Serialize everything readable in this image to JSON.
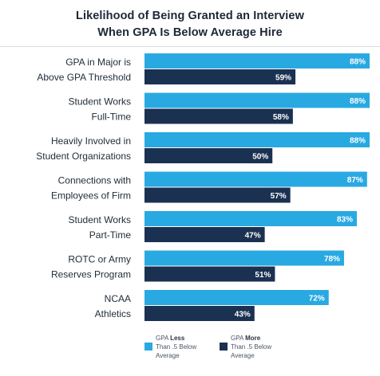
{
  "chart_data": {
    "type": "bar",
    "orientation": "horizontal",
    "title": [
      "Likelihood of Being Granted an Interview",
      "When GPA Is Below Average Hire"
    ],
    "categories": [
      [
        "GPA in Major is",
        "Above GPA Threshold"
      ],
      [
        "Student Works",
        "Full-Time"
      ],
      [
        "Heavily Involved in",
        "Student Organizations"
      ],
      [
        "Connections with",
        "Employees of Firm"
      ],
      [
        "Student Works",
        "Part-Time"
      ],
      [
        "ROTC or Army",
        "Reserves Program"
      ],
      [
        "NCAA",
        "Athletics"
      ]
    ],
    "series": [
      {
        "legend": [
          "GPA ",
          "Less",
          "Than .5 Below",
          "Average"
        ],
        "color": "#29a9e1",
        "values": [
          88,
          88,
          88,
          87,
          83,
          78,
          72
        ],
        "value_labels": [
          "88%",
          "88%",
          "88%",
          "87%",
          "83%",
          "78%",
          "72%"
        ]
      },
      {
        "legend": [
          "GPA ",
          "More",
          "Than .5 Below",
          "Average"
        ],
        "color": "#1b3152",
        "values": [
          59,
          58,
          50,
          57,
          47,
          51,
          43
        ],
        "value_labels": [
          "59%",
          "58%",
          "50%",
          "57%",
          "47%",
          "51%",
          "43%"
        ]
      }
    ],
    "xlim": [
      0,
      100
    ],
    "grid": false,
    "legend_position": "bottom"
  }
}
